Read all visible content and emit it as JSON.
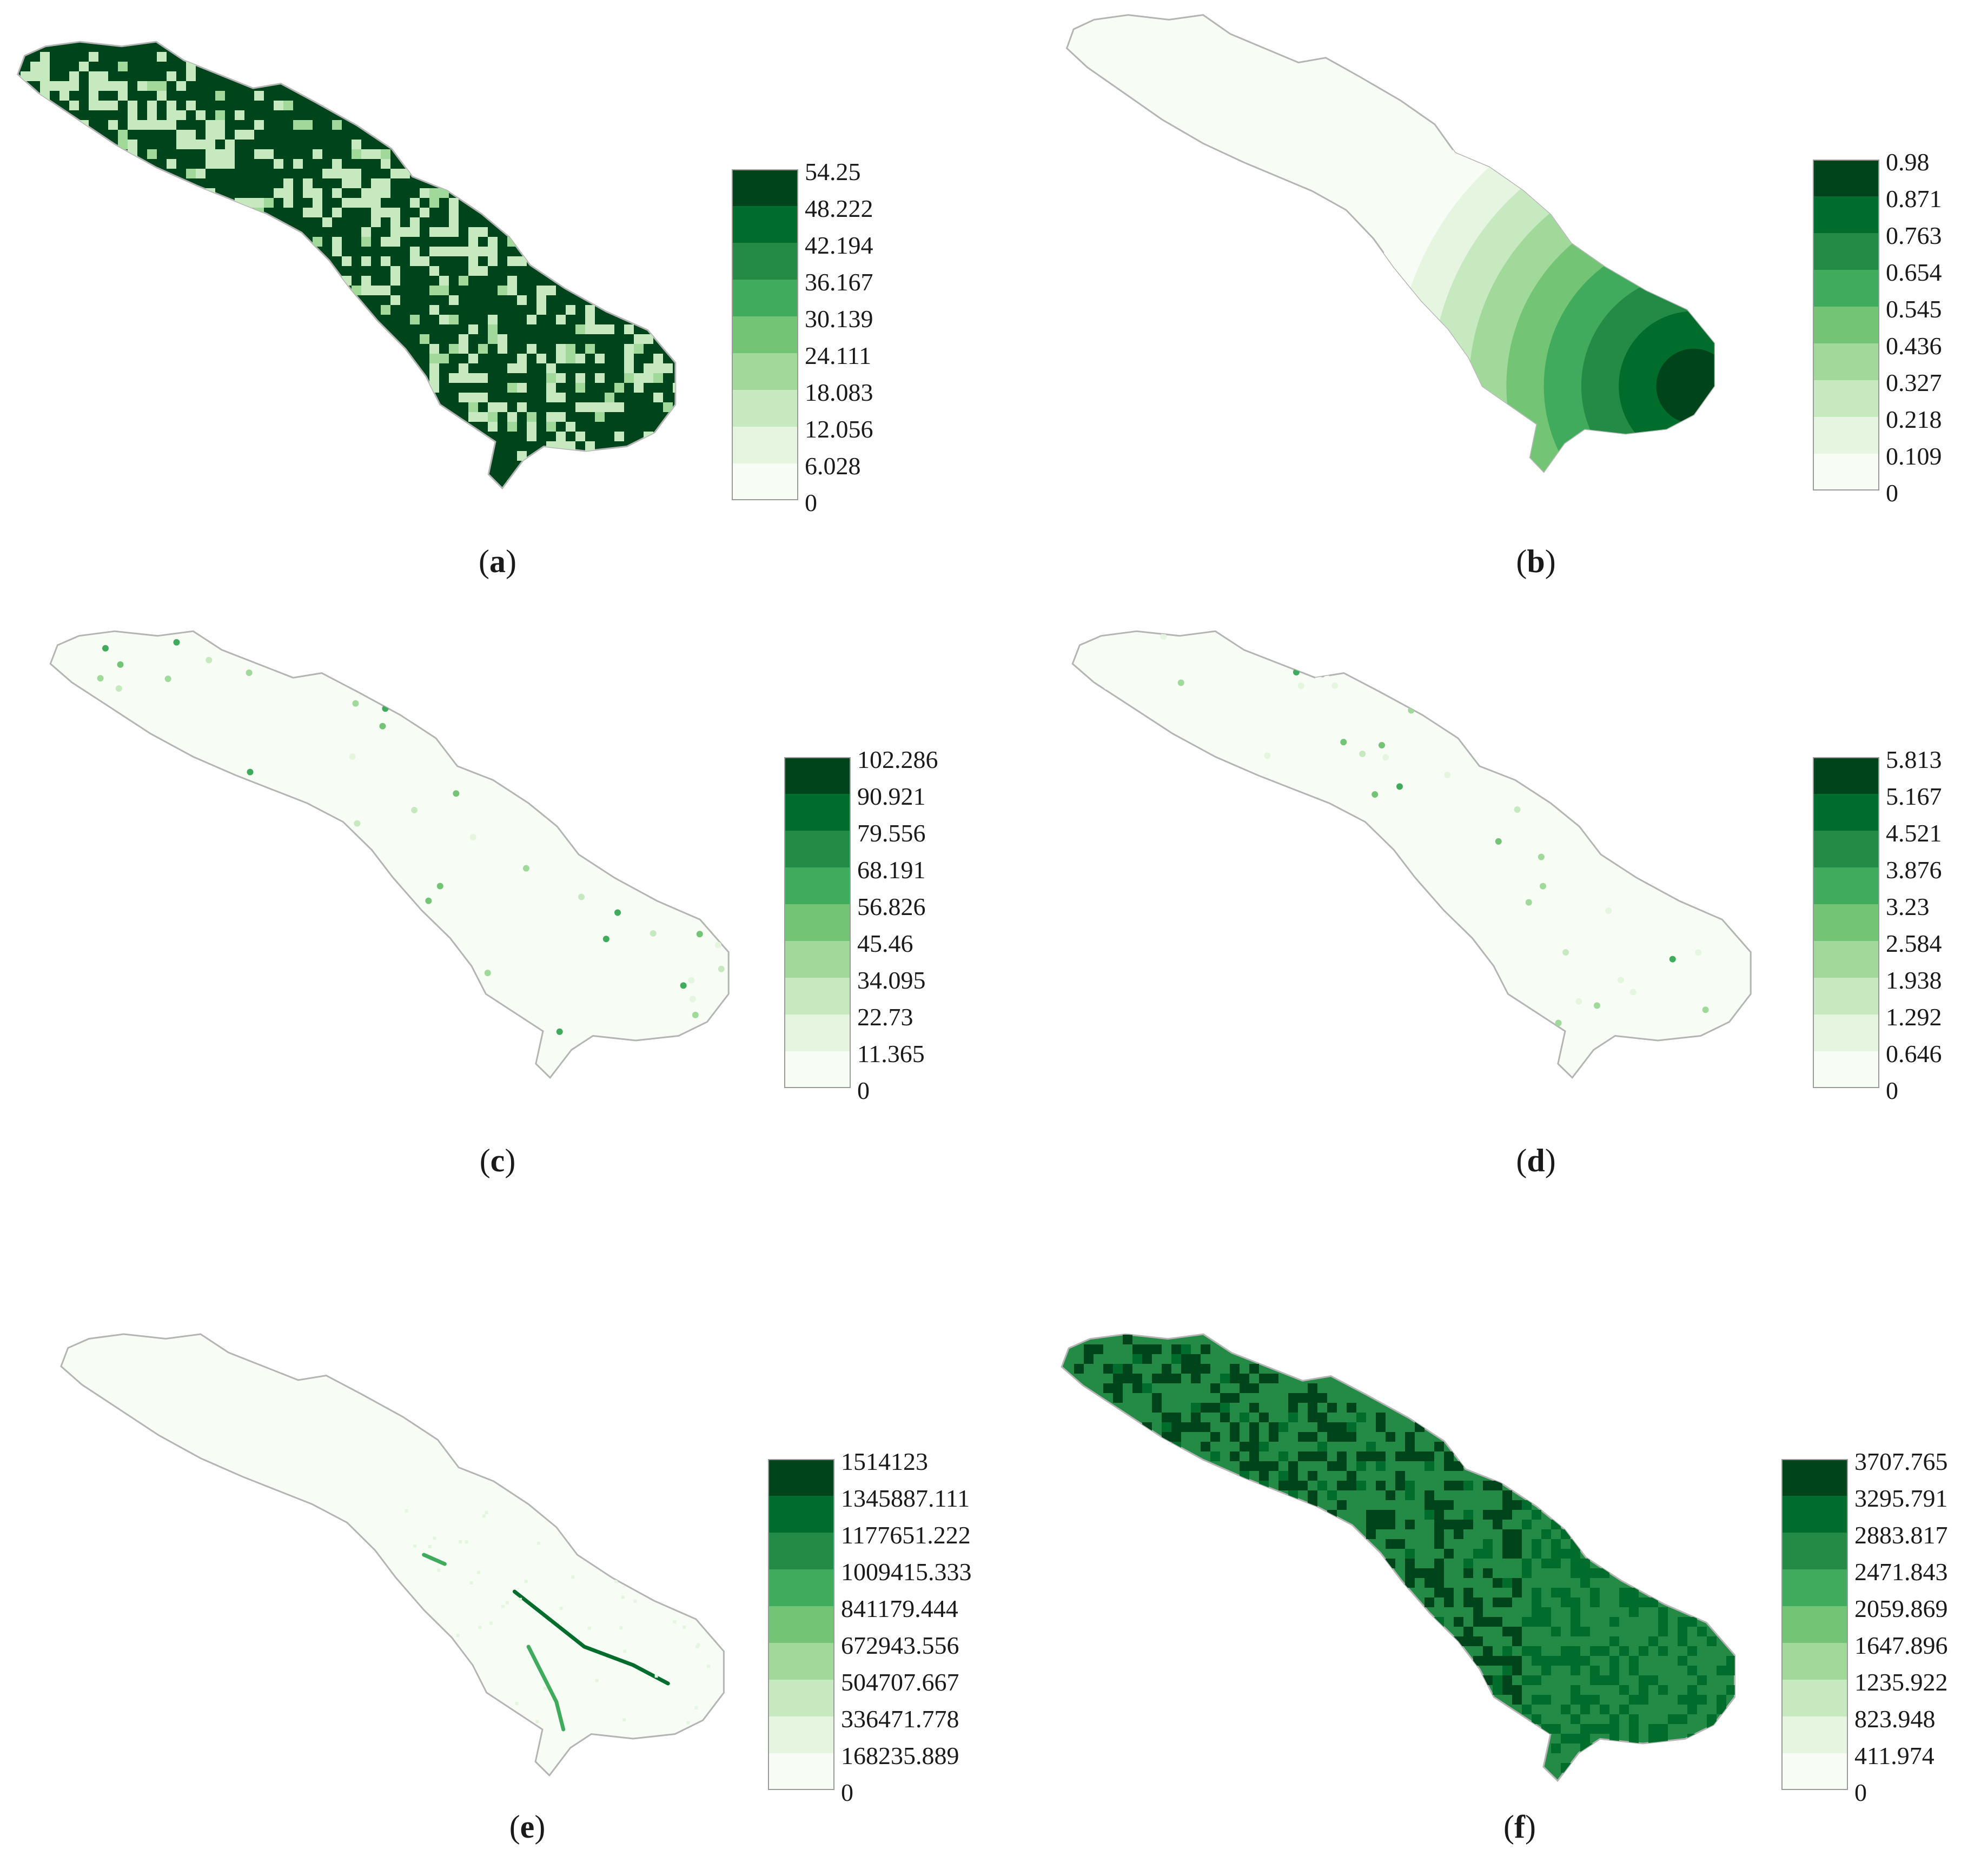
{
  "panels": [
    {
      "id": "a",
      "caption_letter": "a",
      "legend": [
        "54.25",
        "48.222",
        "42.194",
        "36.167",
        "30.139",
        "24.111",
        "18.083",
        "12.056",
        "6.028",
        "0"
      ],
      "pattern": "clustered-high"
    },
    {
      "id": "b",
      "caption_letter": "b",
      "legend": [
        "0.98",
        "0.871",
        "0.763",
        "0.654",
        "0.545",
        "0.436",
        "0.327",
        "0.218",
        "0.109",
        "0"
      ],
      "pattern": "radial-gradient-southeast"
    },
    {
      "id": "c",
      "caption_letter": "c",
      "legend": [
        "102.286",
        "90.921",
        "79.556",
        "68.191",
        "56.826",
        "45.46",
        "34.095",
        "22.73",
        "11.365",
        "0"
      ],
      "pattern": "sparse-points"
    },
    {
      "id": "d",
      "caption_letter": "d",
      "legend": [
        "5.813",
        "5.167",
        "4.521",
        "3.876",
        "3.23",
        "2.584",
        "1.938",
        "1.292",
        "0.646",
        "0"
      ],
      "pattern": "sparse-points"
    },
    {
      "id": "e",
      "caption_letter": "e",
      "legend": [
        "1514123",
        "1345887.111",
        "1177651.222",
        "1009415.333",
        "841179.444",
        "672943.556",
        "504707.667",
        "336471.778",
        "168235.889",
        "0"
      ],
      "pattern": "stream-lines"
    },
    {
      "id": "f",
      "caption_letter": "f",
      "legend": [
        "3707.765",
        "3295.791",
        "2883.817",
        "2471.843",
        "2059.869",
        "1647.896",
        "1235.922",
        "823.948",
        "411.974",
        "0"
      ],
      "pattern": "dense-mottled"
    }
  ],
  "color_ramp": [
    "#00441b",
    "#006d2c",
    "#238b45",
    "#41ab5d",
    "#74c476",
    "#a1d99b",
    "#c7e9c0",
    "#e5f5e0",
    "#f7fcf5"
  ],
  "outline_color": "#b4b4b4"
}
